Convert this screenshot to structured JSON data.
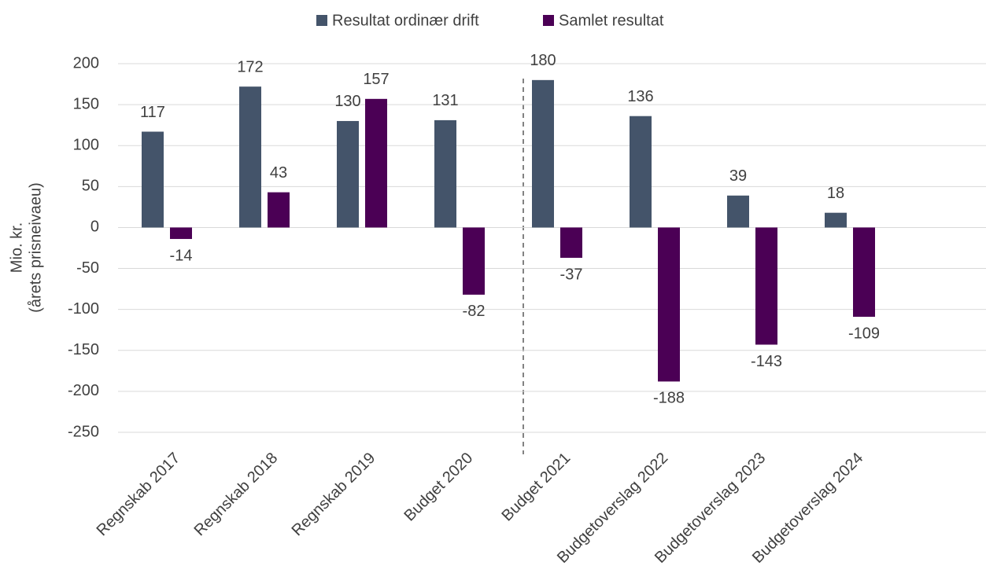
{
  "chart_data": {
    "type": "bar",
    "ylabel": [
      "Mio. kr.",
      "(årets prisneivaeu)"
    ],
    "categories": [
      "Regnskab 2017",
      "Regnskab 2018",
      "Regnskab 2019",
      "Budget 2020",
      "Budget 2021",
      "Budgetoverslag 2022",
      "Budgetoverslag 2023",
      "Budgetoverslag 2024"
    ],
    "series": [
      {
        "name": "Resultat ordinær drift",
        "color": "#44546a",
        "values": [
          117,
          172,
          130,
          131,
          180,
          136,
          39,
          18
        ]
      },
      {
        "name": "Samlet resultat",
        "color": "#4b0055",
        "values": [
          -14,
          43,
          157,
          -82,
          -37,
          -188,
          -143,
          -109
        ]
      }
    ],
    "ylim": [
      -250,
      200
    ],
    "yticks": [
      -250,
      -200,
      -150,
      -100,
      -50,
      0,
      50,
      100,
      150,
      200
    ],
    "grid": true,
    "legend": "top"
  }
}
